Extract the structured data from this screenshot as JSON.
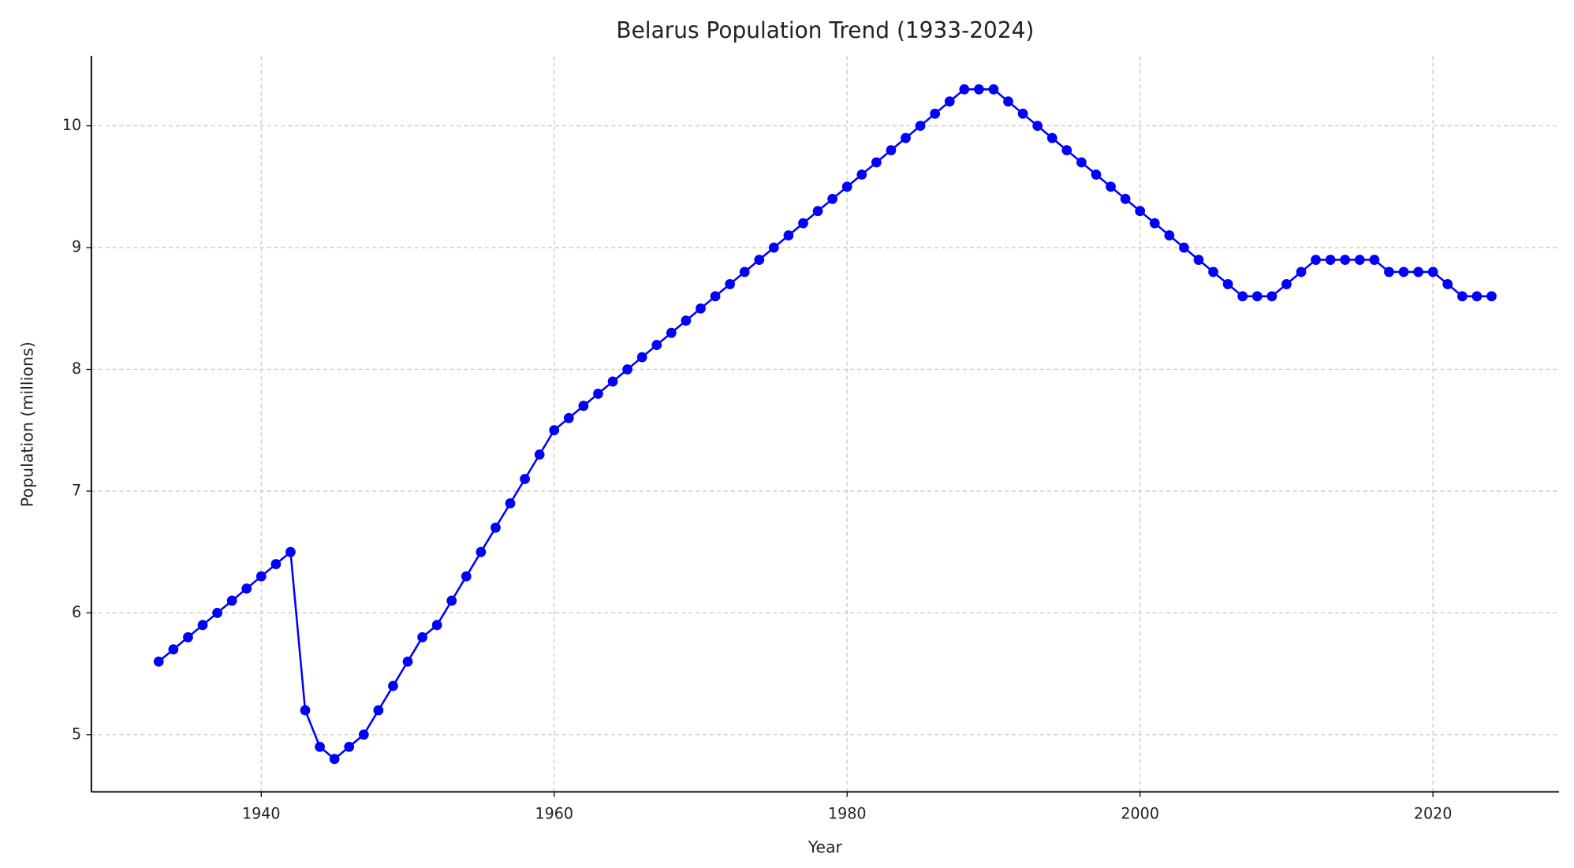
{
  "chart_data": {
    "type": "line",
    "title": "Belarus Population Trend (1933-2024)",
    "x_label": "Year",
    "y_label": "Population (millions)",
    "x": [
      1933,
      1934,
      1935,
      1936,
      1937,
      1938,
      1939,
      1940,
      1941,
      1942,
      1943,
      1944,
      1945,
      1946,
      1947,
      1948,
      1949,
      1950,
      1951,
      1952,
      1953,
      1954,
      1955,
      1956,
      1957,
      1958,
      1959,
      1960,
      1961,
      1962,
      1963,
      1964,
      1965,
      1966,
      1967,
      1968,
      1969,
      1970,
      1971,
      1972,
      1973,
      1974,
      1975,
      1976,
      1977,
      1978,
      1979,
      1980,
      1981,
      1982,
      1983,
      1984,
      1985,
      1986,
      1987,
      1988,
      1989,
      1990,
      1991,
      1992,
      1993,
      1994,
      1995,
      1996,
      1997,
      1998,
      1999,
      2000,
      2001,
      2002,
      2003,
      2004,
      2005,
      2006,
      2007,
      2008,
      2009,
      2010,
      2011,
      2012,
      2013,
      2014,
      2015,
      2016,
      2017,
      2018,
      2019,
      2020,
      2021,
      2022,
      2023,
      2024
    ],
    "series": [
      {
        "color": "#0000ff",
        "values": [
          5.6,
          5.7,
          5.8,
          5.9,
          6.0,
          6.1,
          6.2,
          6.3,
          6.4,
          6.5,
          5.2,
          4.9,
          4.8,
          4.9,
          5.0,
          5.2,
          5.4,
          5.6,
          5.8,
          5.9,
          6.1,
          6.3,
          6.5,
          6.7,
          6.9,
          7.1,
          7.3,
          7.5,
          7.6,
          7.7,
          7.8,
          7.9,
          8.0,
          8.1,
          8.2,
          8.3,
          8.4,
          8.5,
          8.6,
          8.7,
          8.8,
          8.9,
          9.0,
          9.1,
          9.2,
          9.3,
          9.4,
          9.5,
          9.6,
          9.7,
          9.8,
          9.9,
          10.0,
          10.1,
          10.2,
          10.3,
          10.3,
          10.3,
          10.2,
          10.1,
          10.0,
          9.9,
          9.8,
          9.7,
          9.6,
          9.5,
          9.4,
          9.3,
          9.2,
          9.1,
          9.0,
          8.9,
          8.8,
          8.7,
          8.6,
          8.6,
          8.6,
          8.7,
          8.8,
          8.9,
          8.9,
          8.9,
          8.9,
          8.9,
          8.8,
          8.8,
          8.8,
          8.8,
          8.7,
          8.6,
          8.6,
          8.6
        ]
      }
    ],
    "xlim": [
      1928.4,
      2028.6
    ],
    "xticks": [
      1940,
      1960,
      1980,
      2000,
      2020
    ],
    "ylim": [
      4.53,
      10.575
    ],
    "yticks": [
      5,
      6,
      7,
      8,
      9,
      10
    ],
    "grid": true
  }
}
